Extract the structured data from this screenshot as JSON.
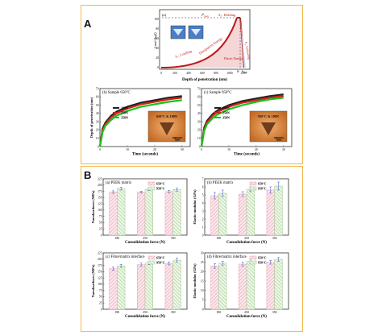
{
  "panels": {
    "A": {
      "letter": "A",
      "curve": {
        "tag": "(a)",
        "p_label": "P",
        "p_sub": "max",
        "ylabel": "Load (kgf)",
        "xlabel": "Depth of penetration (nm)",
        "xticks": [
          "0",
          "200",
          "400",
          "600",
          "800",
          "1000",
          "1200"
        ],
        "yticks": [
          "0",
          "20",
          "40",
          "60",
          "80",
          "100"
        ],
        "labels": {
          "s1": "S₁: Loading",
          "s2": "S₂: Holding",
          "s3": "S₃: Unloading",
          "dissipation": "Dissipation Energy",
          "elastic": "Elastic Energy",
          "hf": "hᶠ",
          "hmax": "hₘₐₓ"
        }
      }
    },
    "creep": [
      {
        "title": "(b) Sample 650°C",
        "ylabel": "Depth of penetration (nm)",
        "xlabel": "Time (seconds)",
        "yticks": [
          "0",
          "10",
          "20",
          "30",
          "40",
          "50",
          "60",
          "70"
        ],
        "xticks": [
          "0",
          "10",
          "20",
          "30"
        ],
        "legend": [
          "180N",
          "250N",
          "350N"
        ],
        "inset_label": "650°C & 180N",
        "scalebar": "5µm"
      },
      {
        "title": "(c) Sample 950°C",
        "ylabel": "",
        "xlabel": "Time (seconds)",
        "yticks": [
          "0",
          "10",
          "20",
          "30",
          "40",
          "50",
          "60",
          "70"
        ],
        "xticks": [
          "0",
          "10",
          "20",
          "30"
        ],
        "legend": [
          "180N",
          "250N",
          "350N"
        ],
        "inset_label": "950°C & 180N",
        "scalebar": "5µm"
      }
    ],
    "B": {
      "letter": "B"
    }
  },
  "colors": {
    "frame": "#f2b84b",
    "s180": "#222222",
    "s250": "#d42020",
    "s350": "#19c419",
    "bar650": "#e8a0b0",
    "bar950": "#9ccb8c"
  },
  "chart_data": [
    {
      "type": "line",
      "title": "(b) Sample 650°C",
      "xlabel": "Time (seconds)",
      "ylabel": "Depth of penetration (nm)",
      "xlim": [
        0,
        33
      ],
      "ylim": [
        0,
        70
      ],
      "x": [
        0,
        1,
        2,
        4,
        6,
        10,
        15,
        20,
        25,
        30
      ],
      "series": [
        {
          "name": "180N",
          "values": [
            0,
            22,
            29,
            37,
            42,
            48,
            53,
            56,
            59,
            61
          ]
        },
        {
          "name": "250N",
          "values": [
            0,
            20,
            27,
            35,
            40,
            46,
            51,
            54,
            57,
            59
          ]
        },
        {
          "name": "350N",
          "values": [
            0,
            18,
            25,
            32,
            37,
            43,
            48,
            51,
            54,
            56
          ]
        }
      ]
    },
    {
      "type": "line",
      "title": "(c) Sample 950°C",
      "xlabel": "Time (seconds)",
      "ylabel": "",
      "xlim": [
        0,
        33
      ],
      "ylim": [
        0,
        70
      ],
      "x": [
        0,
        1,
        2,
        4,
        6,
        10,
        15,
        20,
        25,
        30
      ],
      "series": [
        {
          "name": "180N",
          "values": [
            0,
            23,
            31,
            39,
            44,
            50,
            55,
            58,
            61,
            63
          ]
        },
        {
          "name": "250N",
          "values": [
            0,
            21,
            29,
            37,
            42,
            48,
            53,
            56,
            59,
            61
          ]
        },
        {
          "name": "350N",
          "values": [
            0,
            19,
            27,
            34,
            39,
            45,
            50,
            54,
            57,
            59
          ]
        }
      ]
    },
    {
      "type": "bar",
      "title": "(a) PEEK matrix",
      "xlabel": "Consolidation force (N)",
      "ylabel": "Nanohardness (MPa)",
      "categories": [
        "180",
        "250",
        "350"
      ],
      "ylim": [
        0,
        225
      ],
      "yticks": [
        "0",
        "25",
        "50",
        "75",
        "100",
        "125",
        "150",
        "175",
        "200",
        "225"
      ],
      "series": [
        {
          "name": "650°C",
          "values": [
            172,
            172,
            174
          ]
        },
        {
          "name": "950°C",
          "values": [
            186,
            183,
            182
          ]
        }
      ],
      "errors": [
        [
          5,
          4,
          5
        ],
        [
          6,
          5,
          6
        ]
      ]
    },
    {
      "type": "bar",
      "title": "(b) PEEK matrix",
      "xlabel": "Consolidation force (N)",
      "ylabel": "Elastic modulus (GPa)",
      "categories": [
        "180",
        "250",
        "350"
      ],
      "ylim": [
        0,
        7
      ],
      "yticks": [
        "0",
        "1",
        "2",
        "3",
        "4",
        "5",
        "6",
        "7"
      ],
      "series": [
        {
          "name": "650°C",
          "values": [
            4.9,
            5.1,
            5.6
          ]
        },
        {
          "name": "950°C",
          "values": [
            5.2,
            5.7,
            6.1
          ]
        }
      ],
      "errors": [
        [
          0.4,
          0.3,
          0.4
        ],
        [
          0.4,
          0.3,
          0.5
        ]
      ]
    },
    {
      "type": "bar",
      "title": "(c) Fibre/matrix interface",
      "xlabel": "Consolidation force (N)",
      "ylabel": "Nanohardness (MPa)",
      "categories": [
        "180",
        "250",
        "350"
      ],
      "ylim": [
        0,
        225
      ],
      "yticks": [
        "0",
        "25",
        "50",
        "75",
        "100",
        "125",
        "150",
        "175",
        "200",
        "225"
      ],
      "series": [
        {
          "name": "650°C",
          "values": [
            162,
            178,
            183
          ]
        },
        {
          "name": "950°C",
          "values": [
            173,
            184,
            196
          ]
        }
      ],
      "errors": [
        [
          7,
          6,
          6
        ],
        [
          6,
          6,
          8
        ]
      ]
    },
    {
      "type": "bar",
      "title": "(d) Fibre/matrix interface",
      "xlabel": "Consolidation force (N)",
      "ylabel": "Elastic modulus (GPa)",
      "categories": [
        "180",
        "250",
        "350"
      ],
      "ylim": [
        0,
        30
      ],
      "yticks": [
        "0",
        "5",
        "10",
        "15",
        "20",
        "25",
        "30"
      ],
      "series": [
        {
          "name": "650°C",
          "values": [
            23,
            24,
            25
          ]
        },
        {
          "name": "950°C",
          "values": [
            24.5,
            25.5,
            26.5
          ]
        }
      ],
      "errors": [
        [
          1.2,
          1.0,
          1.0
        ],
        [
          1.0,
          1.2,
          1.0
        ]
      ]
    }
  ]
}
